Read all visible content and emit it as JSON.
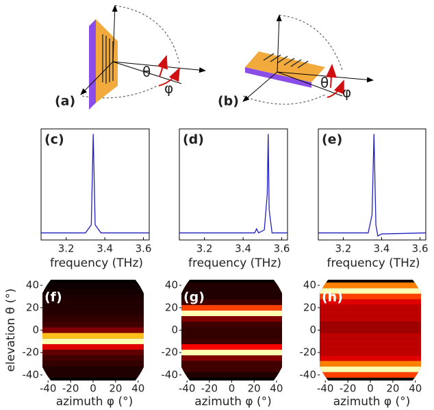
{
  "diagrams": [
    {
      "label": "(a)",
      "theta": "θ",
      "phi": "φ"
    },
    {
      "label": "(b)",
      "theta": "θ",
      "phi": "φ"
    }
  ],
  "chart_data": [
    {
      "type": "line",
      "label": "(c)",
      "xlabel": "frequency (THz)",
      "color": "#2020c0",
      "x": [
        3.07,
        3.3,
        3.33,
        3.34,
        3.35,
        3.38,
        3.63
      ],
      "values": [
        0.02,
        0.02,
        0.1,
        1,
        0.1,
        0.02,
        0.02
      ],
      "xlim": [
        3.07,
        3.63
      ],
      "ylim": [
        -0.05,
        1.05
      ],
      "xticks": [
        3.2,
        3.4,
        3.6
      ]
    },
    {
      "type": "line",
      "label": "(d)",
      "xlabel": "frequency (THz)",
      "color": "#2020c0",
      "x": [
        3.07,
        3.46,
        3.47,
        3.48,
        3.51,
        3.525,
        3.53,
        3.535,
        3.55,
        3.63
      ],
      "values": [
        0.02,
        0.02,
        0.06,
        0.02,
        0.05,
        0.4,
        1,
        0.25,
        0.02,
        0.02
      ],
      "xlim": [
        3.07,
        3.63
      ],
      "ylim": [
        -0.05,
        1.05
      ],
      "xticks": [
        3.2,
        3.4,
        3.6
      ]
    },
    {
      "type": "line",
      "label": "(e)",
      "xlabel": "frequency (THz)",
      "color": "#2020c0",
      "x": [
        3.07,
        3.33,
        3.35,
        3.36,
        3.37,
        3.38,
        3.4,
        3.63
      ],
      "values": [
        0.02,
        0.02,
        0.2,
        1,
        0.1,
        -0.01,
        0.01,
        0.02
      ],
      "xlim": [
        3.07,
        3.63
      ],
      "ylim": [
        -0.05,
        1.05
      ],
      "xticks": [
        3.2,
        3.4,
        3.6
      ]
    },
    {
      "type": "heatmap",
      "label": "(f)",
      "xlabel": "azimuth φ (°)",
      "ylabel": "elevation θ (°)",
      "y": [
        -40,
        -35,
        -30,
        -25,
        -20,
        -15,
        -10,
        -5,
        0,
        5,
        10,
        15,
        20,
        25,
        30,
        35,
        40
      ],
      "values": [
        0.05,
        0.05,
        0.08,
        0.1,
        0.15,
        0.35,
        0.9,
        0.7,
        0.2,
        0.1,
        0.08,
        0.06,
        0.05,
        0.05,
        0.04,
        0.03,
        0.02
      ],
      "xlim": [
        -45,
        45
      ],
      "ylim": [
        -45,
        45
      ],
      "xticks": [
        -40,
        -20,
        0,
        20,
        40
      ],
      "yticks": [
        -40,
        -20,
        0,
        20,
        40
      ]
    },
    {
      "type": "heatmap",
      "label": "(g)",
      "xlabel": "azimuth φ (°)",
      "y": [
        -40,
        -35,
        -30,
        -25,
        -20,
        -15,
        -10,
        -5,
        0,
        5,
        10,
        15,
        20,
        25,
        30,
        35,
        40
      ],
      "values": [
        0.05,
        0.1,
        0.1,
        0.2,
        0.9,
        0.4,
        0.1,
        0.08,
        0.08,
        0.1,
        0.2,
        0.9,
        0.5,
        0.1,
        0.05,
        0.05,
        0.05
      ],
      "xlim": [
        -45,
        45
      ],
      "ylim": [
        -45,
        45
      ],
      "xticks": [
        -40,
        -20,
        0,
        20,
        40
      ],
      "yticks": [
        -40,
        -20,
        0,
        20,
        40
      ]
    },
    {
      "type": "heatmap",
      "label": "(h)",
      "xlabel": "azimuth φ (°)",
      "y": [
        -40,
        -35,
        -30,
        -25,
        -20,
        -15,
        -10,
        -5,
        0,
        5,
        10,
        15,
        20,
        25,
        30,
        35,
        40
      ],
      "values": [
        0.5,
        0.9,
        0.6,
        0.35,
        0.3,
        0.3,
        0.3,
        0.3,
        0.25,
        0.25,
        0.3,
        0.3,
        0.3,
        0.35,
        0.5,
        0.9,
        0.6
      ],
      "xlim": [
        -45,
        45
      ],
      "ylim": [
        -45,
        45
      ],
      "xticks": [
        -40,
        -20,
        0,
        20,
        40
      ],
      "yticks": [
        -40,
        -20,
        0,
        20,
        40
      ]
    }
  ]
}
